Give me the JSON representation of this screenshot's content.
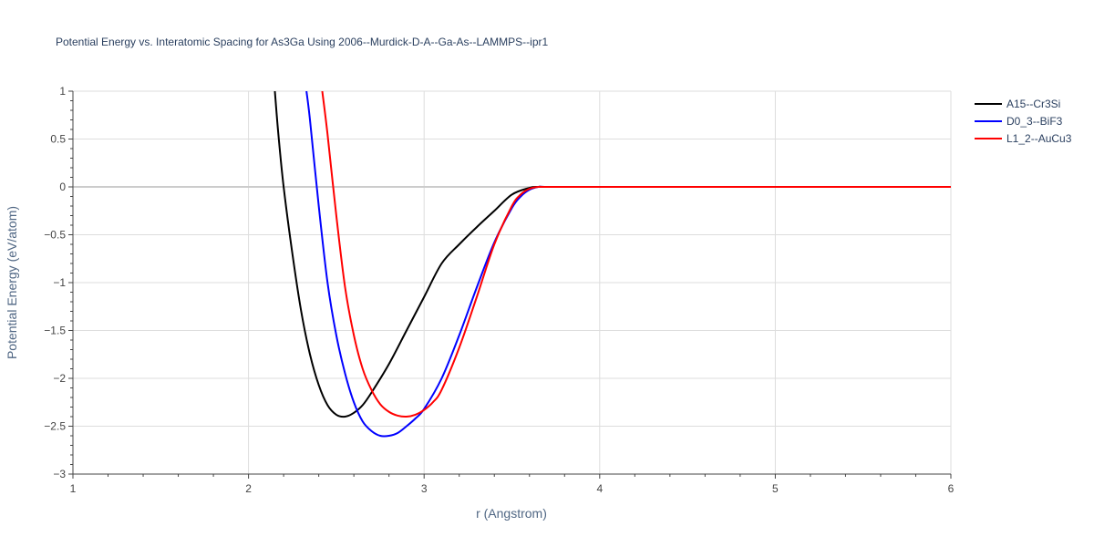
{
  "chart_data": {
    "type": "line",
    "title": "Potential Energy vs. Interatomic Spacing for As3Ga Using 2006--Murdick-D-A--Ga-As--LAMMPS--ipr1",
    "xlabel": "r (Angstrom)",
    "ylabel": "Potential Energy (eV/atom)",
    "xlim": [
      1,
      6
    ],
    "ylim": [
      -3,
      1
    ],
    "xticks": [
      "1",
      "2",
      "3",
      "4",
      "5",
      "6"
    ],
    "yticks": [
      "1",
      "0.5",
      "0",
      "−0.5",
      "−1",
      "−1.5",
      "−2",
      "−2.5",
      "−3"
    ],
    "grid": true,
    "legend_position": "top-right",
    "series": [
      {
        "name": "A15--Cr3Si",
        "color": "#000000",
        "x": [
          2.15,
          2.17,
          2.2,
          2.25,
          2.3,
          2.35,
          2.4,
          2.45,
          2.5,
          2.55,
          2.6,
          2.65,
          2.7,
          2.8,
          2.9,
          3.0,
          3.1,
          3.2,
          3.3,
          3.4,
          3.5,
          3.6,
          3.65,
          3.7,
          4.0,
          5.0,
          6.0
        ],
        "y": [
          1.0,
          0.55,
          0.0,
          -0.7,
          -1.3,
          -1.75,
          -2.07,
          -2.28,
          -2.38,
          -2.4,
          -2.36,
          -2.28,
          -2.15,
          -1.85,
          -1.5,
          -1.15,
          -0.8,
          -0.6,
          -0.42,
          -0.25,
          -0.08,
          -0.01,
          0.0,
          0.0,
          0.0,
          0.0,
          0.0
        ]
      },
      {
        "name": "D0_3--BiF3",
        "color": "#0000ff",
        "x": [
          2.33,
          2.35,
          2.4,
          2.45,
          2.5,
          2.55,
          2.6,
          2.65,
          2.7,
          2.75,
          2.8,
          2.85,
          2.9,
          2.95,
          3.0,
          3.1,
          3.2,
          3.3,
          3.4,
          3.5,
          3.55,
          3.6,
          3.65,
          3.7,
          4.0,
          5.0,
          6.0
        ],
        "y": [
          1.0,
          0.7,
          -0.2,
          -1.0,
          -1.55,
          -1.95,
          -2.25,
          -2.45,
          -2.55,
          -2.6,
          -2.6,
          -2.57,
          -2.5,
          -2.42,
          -2.32,
          -2.0,
          -1.55,
          -1.05,
          -0.58,
          -0.22,
          -0.1,
          -0.03,
          0.0,
          0.0,
          0.0,
          0.0,
          0.0
        ]
      },
      {
        "name": "L1_2--AuCu3",
        "color": "#ff0000",
        "x": [
          2.42,
          2.45,
          2.5,
          2.55,
          2.6,
          2.65,
          2.7,
          2.75,
          2.8,
          2.85,
          2.9,
          2.95,
          3.0,
          3.05,
          3.1,
          3.2,
          3.3,
          3.4,
          3.5,
          3.55,
          3.6,
          3.65,
          3.7,
          4.0,
          5.0,
          6.0
        ],
        "y": [
          1.0,
          0.55,
          -0.3,
          -1.05,
          -1.55,
          -1.9,
          -2.12,
          -2.27,
          -2.35,
          -2.39,
          -2.4,
          -2.38,
          -2.33,
          -2.25,
          -2.12,
          -1.68,
          -1.15,
          -0.6,
          -0.2,
          -0.08,
          -0.02,
          0.0,
          0.0,
          0.0,
          0.0,
          0.0
        ]
      }
    ]
  }
}
